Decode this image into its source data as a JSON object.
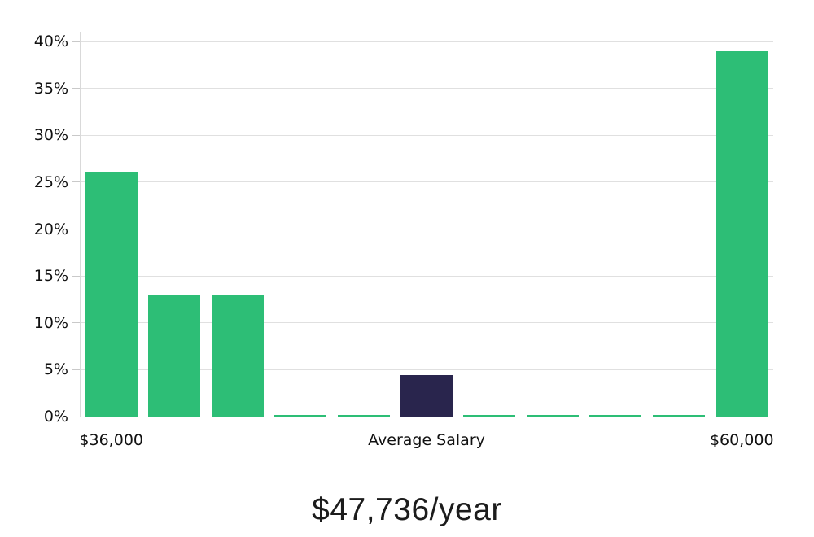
{
  "page": {
    "background_color": "#ffffff"
  },
  "chart_data": {
    "type": "bar",
    "title": "$47,736/year",
    "description": "Salary distribution histogram with highlighted average salary bucket",
    "categories": [
      "$36,000",
      "",
      "",
      "",
      "",
      "Average Salary",
      "",
      "",
      "",
      "",
      "$60,000"
    ],
    "values": [
      26,
      13,
      13,
      0.2,
      0.2,
      4.4,
      0.2,
      0.2,
      0.2,
      0.2,
      39
    ],
    "bar_color": "#2dbe76",
    "highlight_index": 5,
    "highlight_color": "#29254d",
    "ylim": [
      0,
      40
    ],
    "ytick_step": 5,
    "ytick_labels": [
      "0%",
      "5%",
      "10%",
      "15%",
      "20%",
      "25%",
      "30%",
      "35%",
      "40%"
    ],
    "x_tick_labels": [
      {
        "bar_index": 0,
        "label": "$36,000"
      },
      {
        "bar_index": 5,
        "label": "Average Salary"
      },
      {
        "bar_index": 10,
        "label": "$60,000"
      }
    ],
    "grid": true,
    "legend_position": "none",
    "colors": {
      "gridline": "#e0e0e0",
      "baseline": "#d2d2d2",
      "spine": "#d9d9d9",
      "tick": "#c9c9c9",
      "axis_text": "#111111",
      "title_text": "#1c1c1c"
    }
  }
}
